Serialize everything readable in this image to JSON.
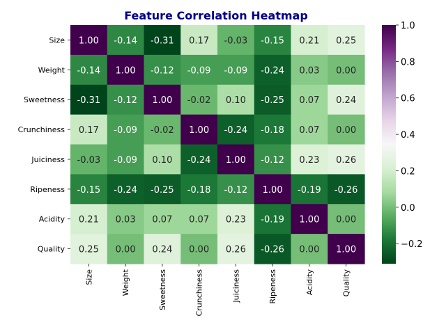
{
  "chart_data": {
    "type": "heatmap",
    "title": "Feature Correlation Heatmap",
    "title_color": "#00008b",
    "x_categories": [
      "Size",
      "Weight",
      "Sweetness",
      "Crunchiness",
      "Juiciness",
      "Ripeness",
      "Acidity",
      "Quality"
    ],
    "y_categories": [
      "Size",
      "Weight",
      "Sweetness",
      "Crunchiness",
      "Juiciness",
      "Ripeness",
      "Acidity",
      "Quality"
    ],
    "values": [
      [
        1.0,
        -0.14,
        -0.31,
        0.17,
        -0.03,
        -0.15,
        0.21,
        0.25
      ],
      [
        -0.14,
        1.0,
        -0.12,
        -0.09,
        -0.09,
        -0.24,
        0.03,
        0.0
      ],
      [
        -0.31,
        -0.12,
        1.0,
        -0.02,
        0.1,
        -0.25,
        0.07,
        0.24
      ],
      [
        0.17,
        -0.09,
        -0.02,
        1.0,
        -0.24,
        -0.18,
        0.07,
        0.0
      ],
      [
        -0.03,
        -0.09,
        0.1,
        -0.24,
        1.0,
        -0.12,
        0.23,
        0.26
      ],
      [
        -0.15,
        -0.24,
        -0.25,
        -0.18,
        -0.12,
        1.0,
        -0.19,
        -0.26
      ],
      [
        0.21,
        0.03,
        0.07,
        0.07,
        0.23,
        -0.19,
        1.0,
        0.0
      ],
      [
        0.25,
        0.0,
        0.24,
        0.0,
        0.26,
        -0.26,
        0.0,
        1.0
      ]
    ],
    "value_format": "2 decimals",
    "colormap": "PRGn_r",
    "vmin": -0.31,
    "vmax": 1.0,
    "colorbar_ticks": [
      "−0.2",
      "0.0",
      "0.2",
      "0.4",
      "0.6",
      "0.8",
      "1.0"
    ],
    "colorbar_tick_values": [
      -0.2,
      0.0,
      0.2,
      0.4,
      0.6,
      0.8,
      1.0
    ],
    "grid": false
  }
}
